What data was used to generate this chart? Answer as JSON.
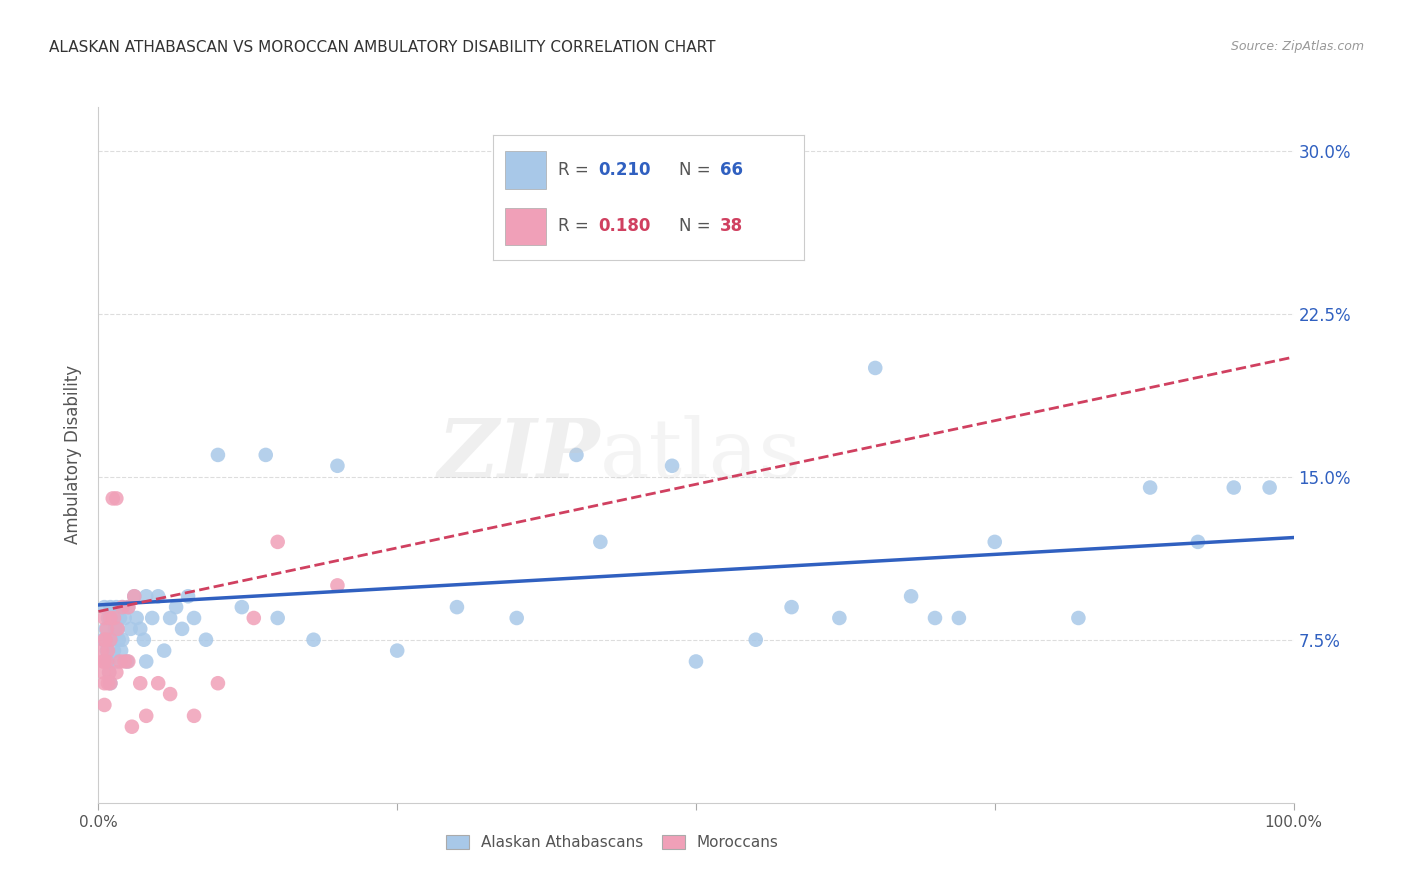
{
  "title": "ALASKAN ATHABASCAN VS MOROCCAN AMBULATORY DISABILITY CORRELATION CHART",
  "source": "Source: ZipAtlas.com",
  "ylabel": "Ambulatory Disability",
  "xlim": [
    0.0,
    1.0
  ],
  "ylim": [
    0.0,
    0.32
  ],
  "xticks": [
    0.0,
    0.25,
    0.5,
    0.75,
    1.0
  ],
  "xtick_labels": [
    "0.0%",
    "",
    "",
    "",
    "100.0%"
  ],
  "yticks": [
    0.075,
    0.15,
    0.225,
    0.3
  ],
  "ytick_labels": [
    "7.5%",
    "15.0%",
    "22.5%",
    "30.0%"
  ],
  "blue_R": "0.210",
  "blue_N": "66",
  "pink_R": "0.180",
  "pink_N": "38",
  "blue_color": "#A8C8E8",
  "pink_color": "#F0A0B8",
  "blue_line_color": "#3060C0",
  "pink_line_color": "#D04060",
  "background_color": "#FFFFFF",
  "watermark_zip": "ZIP",
  "watermark_atlas": "atlas",
  "blue_scatter_x": [
    0.004,
    0.005,
    0.006,
    0.007,
    0.008,
    0.008,
    0.009,
    0.01,
    0.01,
    0.01,
    0.012,
    0.013,
    0.014,
    0.015,
    0.015,
    0.016,
    0.017,
    0.018,
    0.019,
    0.02,
    0.02,
    0.022,
    0.024,
    0.025,
    0.027,
    0.03,
    0.032,
    0.035,
    0.038,
    0.04,
    0.04,
    0.045,
    0.05,
    0.055,
    0.06,
    0.065,
    0.07,
    0.075,
    0.08,
    0.09,
    0.1,
    0.12,
    0.14,
    0.15,
    0.18,
    0.2,
    0.25,
    0.3,
    0.35,
    0.4,
    0.42,
    0.48,
    0.5,
    0.55,
    0.58,
    0.62,
    0.65,
    0.68,
    0.7,
    0.72,
    0.75,
    0.82,
    0.88,
    0.92,
    0.95,
    0.98
  ],
  "blue_scatter_y": [
    0.075,
    0.09,
    0.08,
    0.07,
    0.085,
    0.065,
    0.06,
    0.09,
    0.075,
    0.055,
    0.085,
    0.07,
    0.08,
    0.09,
    0.065,
    0.08,
    0.075,
    0.085,
    0.07,
    0.09,
    0.075,
    0.085,
    0.065,
    0.09,
    0.08,
    0.095,
    0.085,
    0.08,
    0.075,
    0.095,
    0.065,
    0.085,
    0.095,
    0.07,
    0.085,
    0.09,
    0.08,
    0.095,
    0.085,
    0.075,
    0.16,
    0.09,
    0.16,
    0.085,
    0.075,
    0.155,
    0.07,
    0.09,
    0.085,
    0.16,
    0.12,
    0.155,
    0.065,
    0.075,
    0.09,
    0.085,
    0.2,
    0.095,
    0.085,
    0.085,
    0.12,
    0.085,
    0.145,
    0.12,
    0.145,
    0.145
  ],
  "pink_scatter_x": [
    0.003,
    0.004,
    0.004,
    0.005,
    0.005,
    0.005,
    0.005,
    0.005,
    0.006,
    0.007,
    0.007,
    0.008,
    0.008,
    0.009,
    0.01,
    0.01,
    0.01,
    0.012,
    0.013,
    0.015,
    0.015,
    0.016,
    0.018,
    0.02,
    0.022,
    0.025,
    0.025,
    0.028,
    0.03,
    0.035,
    0.04,
    0.05,
    0.06,
    0.08,
    0.1,
    0.13,
    0.15,
    0.2
  ],
  "pink_scatter_y": [
    0.07,
    0.065,
    0.06,
    0.085,
    0.075,
    0.065,
    0.055,
    0.045,
    0.075,
    0.08,
    0.065,
    0.055,
    0.07,
    0.06,
    0.085,
    0.075,
    0.055,
    0.14,
    0.085,
    0.14,
    0.06,
    0.08,
    0.065,
    0.09,
    0.065,
    0.09,
    0.065,
    0.035,
    0.095,
    0.055,
    0.04,
    0.055,
    0.05,
    0.04,
    0.055,
    0.085,
    0.12,
    0.1
  ],
  "blue_line_x0": 0.0,
  "blue_line_y0": 0.091,
  "blue_line_x1": 1.0,
  "blue_line_y1": 0.122,
  "pink_line_x0": 0.0,
  "pink_line_y0": 0.088,
  "pink_line_x1": 1.0,
  "pink_line_y1": 0.205
}
